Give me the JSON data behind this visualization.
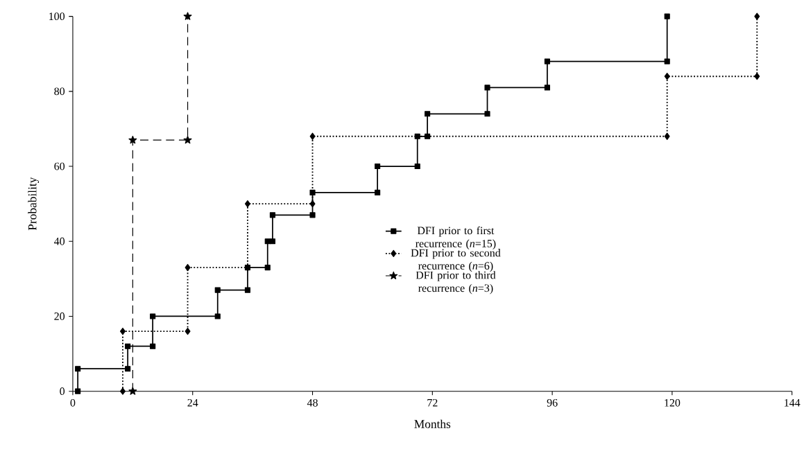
{
  "chart_data": {
    "type": "line",
    "xlabel": "Months",
    "ylabel": "Probability",
    "xlim": [
      0,
      144
    ],
    "ylim": [
      0,
      100
    ],
    "xticks": [
      0,
      24,
      48,
      72,
      96,
      120,
      144
    ],
    "yticks": [
      0,
      20,
      40,
      60,
      80,
      100
    ],
    "grid": false,
    "legend": "right",
    "series": [
      {
        "name": "DFI prior to first recurrence (*n*=15)",
        "color": "#000000",
        "marker": "square",
        "line_style": "solid",
        "x": [
          1,
          1,
          11,
          11,
          16,
          16,
          29,
          29,
          35,
          35,
          39,
          39,
          40,
          40,
          48,
          48,
          61,
          61,
          69,
          69,
          71,
          71,
          83,
          83,
          95,
          95,
          119,
          119
        ],
        "values": [
          0,
          6,
          6,
          12,
          12,
          20,
          20,
          27,
          27,
          33,
          33,
          40,
          40,
          47,
          47,
          53,
          53,
          60,
          60,
          68,
          68,
          74,
          74,
          81,
          81,
          88,
          88,
          100
        ]
      },
      {
        "name": "DFI prior to second recurrence (*n*=6)",
        "color": "#000000",
        "marker": "diamond",
        "line_style": "dotted",
        "x": [
          10,
          10,
          23,
          23,
          35,
          35,
          48,
          48,
          119,
          119,
          137,
          137
        ],
        "values": [
          0,
          16,
          16,
          33,
          33,
          50,
          50,
          68,
          68,
          84,
          84,
          100
        ]
      },
      {
        "name": "DFI prior to third recurrence (*n*=3)",
        "color": "#000000",
        "marker": "star",
        "line_style": "dashed",
        "x": [
          12,
          12,
          23,
          23
        ],
        "values": [
          0,
          67,
          67,
          100
        ]
      }
    ]
  }
}
